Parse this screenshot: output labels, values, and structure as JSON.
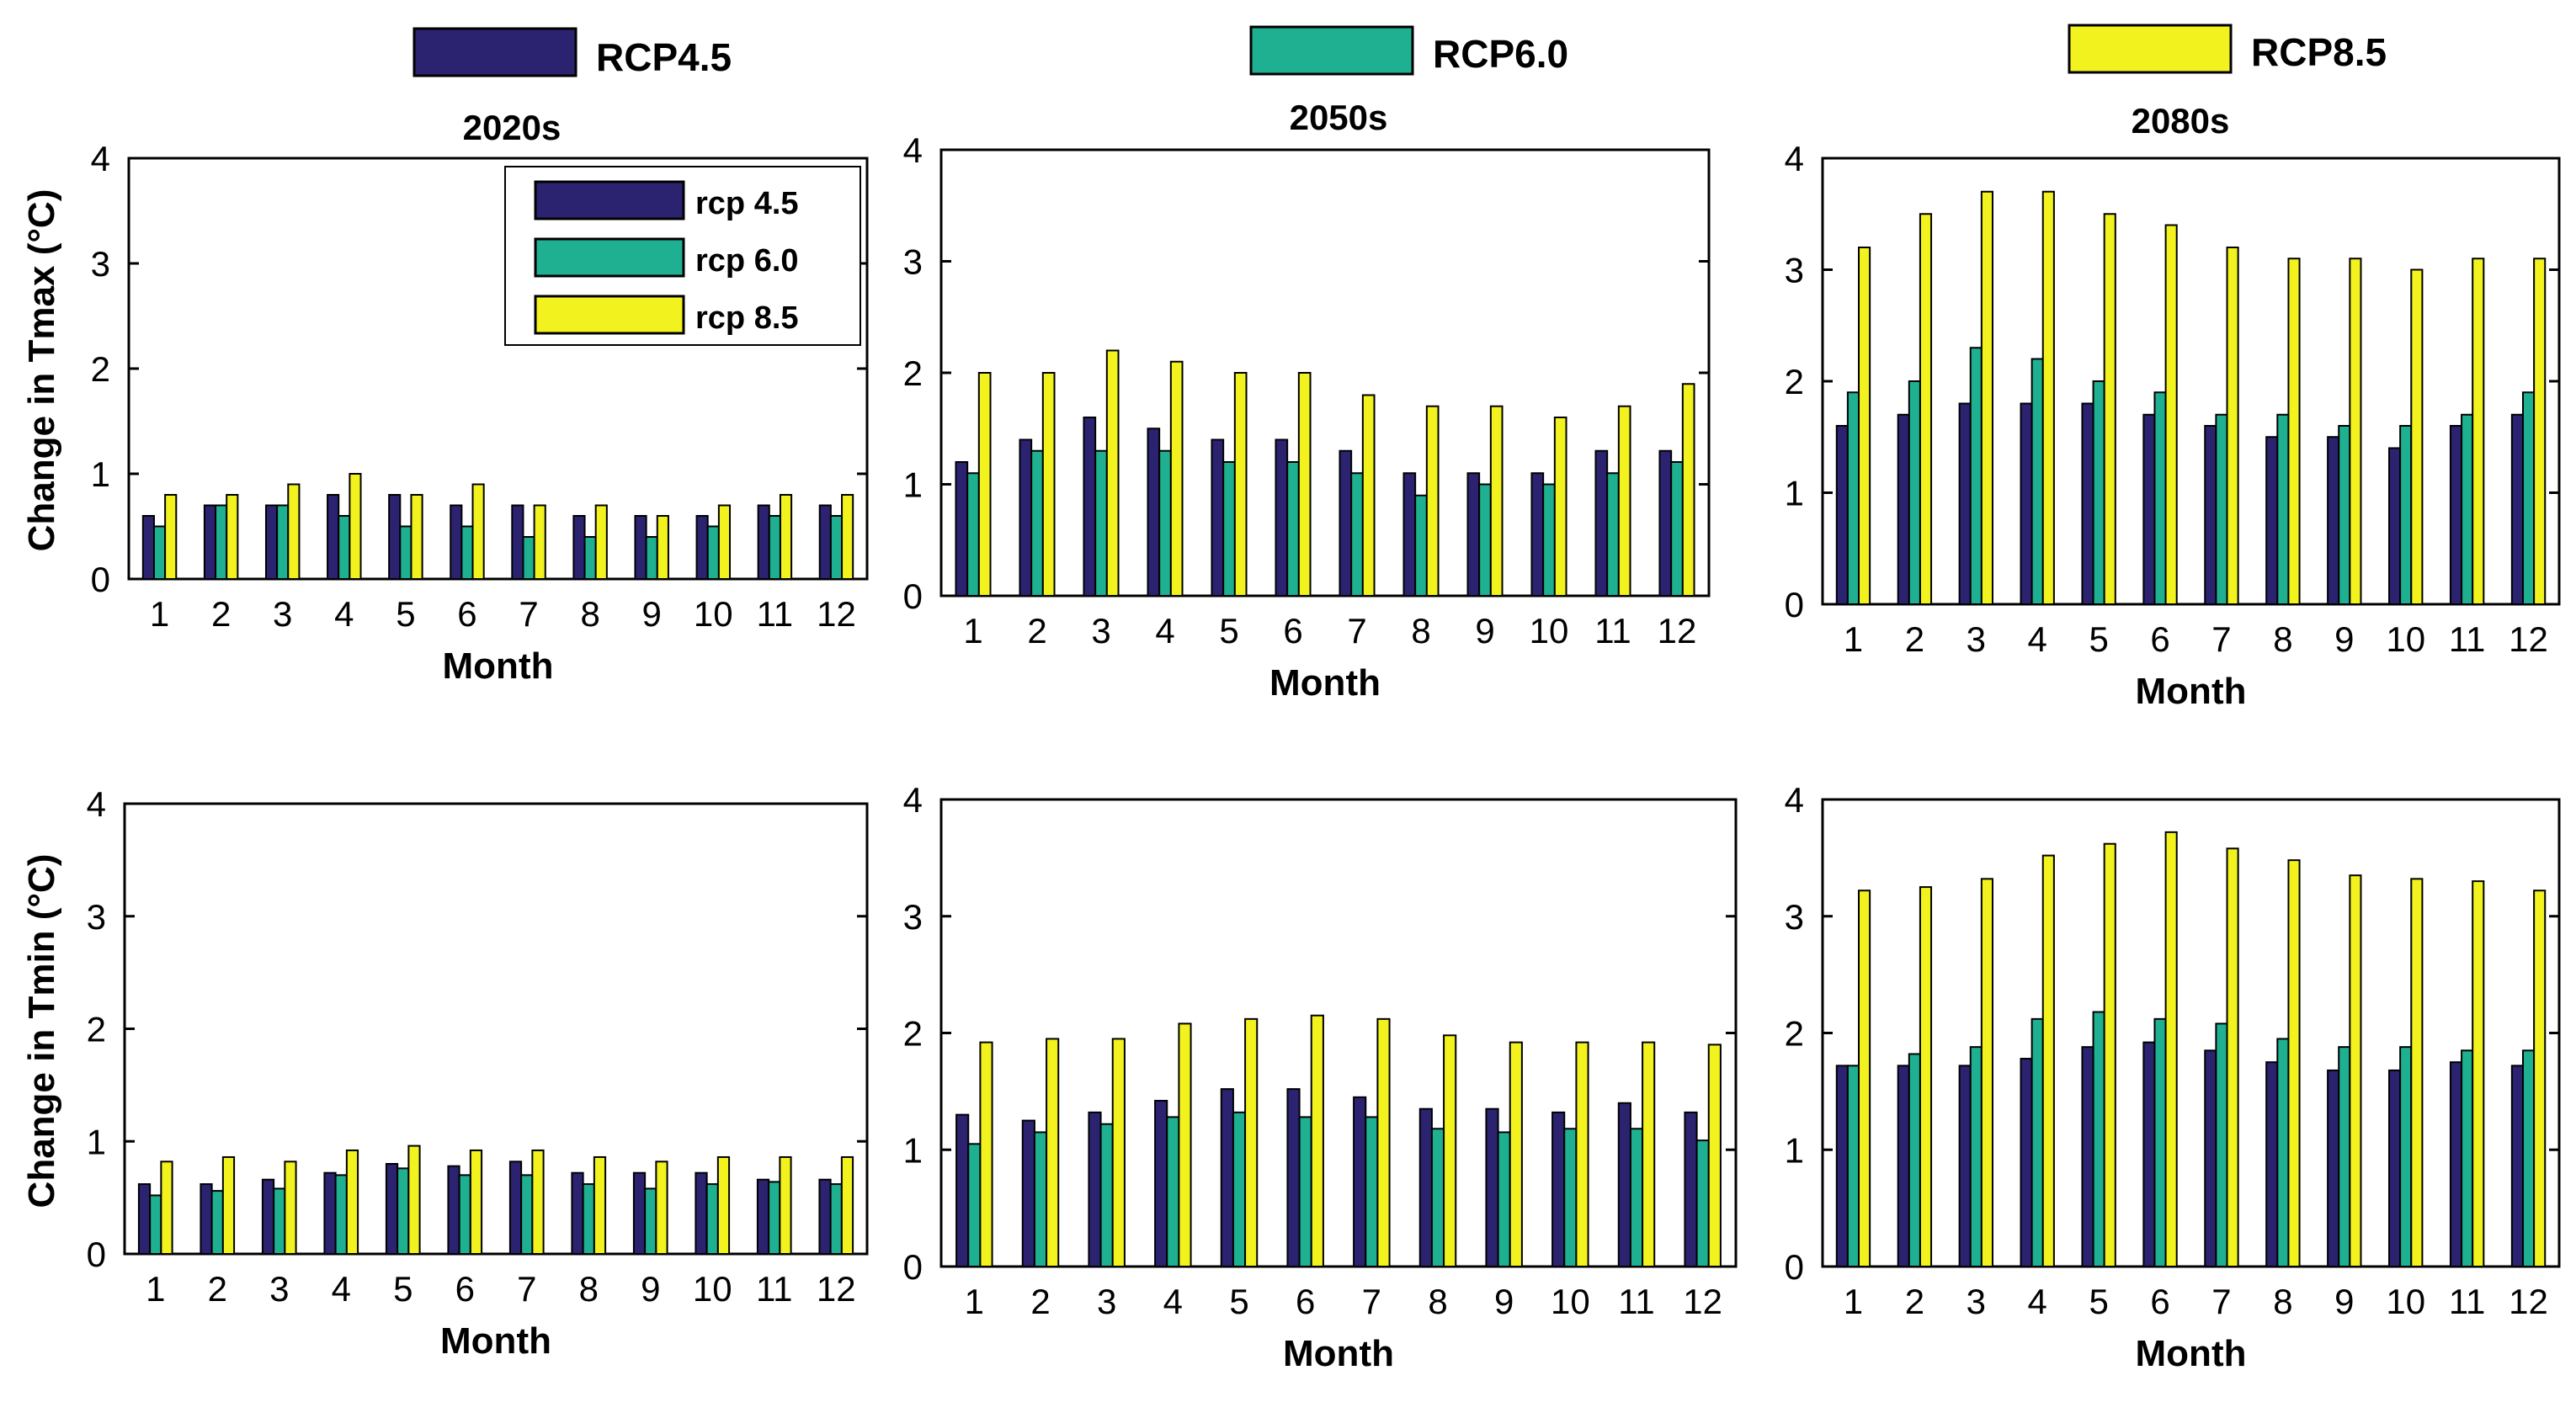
{
  "top_legend": [
    {
      "label": "RCP4.5",
      "color": "#2b2370"
    },
    {
      "label": "RCP6.0",
      "color": "#1fb091"
    },
    {
      "label": "RCP8.5",
      "color": "#f2f21f"
    }
  ],
  "inner_legend": [
    "rcp 4.5",
    "rcp 6.0",
    "rcp 8.5"
  ],
  "chart_data": [
    {
      "id": "tmax-2020s",
      "type": "bar",
      "title": "2020s",
      "ylabel": "Change in Tmax (°C)",
      "xlabel": "Month",
      "categories": [
        "1",
        "2",
        "3",
        "4",
        "5",
        "6",
        "7",
        "8",
        "9",
        "10",
        "11",
        "12"
      ],
      "ylim": [
        0,
        4
      ],
      "yticks": [
        "0",
        "1",
        "2",
        "3",
        "4"
      ],
      "series": [
        {
          "name": "rcp 4.5",
          "values": [
            0.6,
            0.7,
            0.7,
            0.8,
            0.8,
            0.7,
            0.7,
            0.6,
            0.6,
            0.6,
            0.7,
            0.7
          ]
        },
        {
          "name": "rcp 6.0",
          "values": [
            0.5,
            0.7,
            0.7,
            0.6,
            0.5,
            0.5,
            0.4,
            0.4,
            0.4,
            0.5,
            0.6,
            0.6
          ]
        },
        {
          "name": "rcp 8.5",
          "values": [
            0.8,
            0.8,
            0.9,
            1.0,
            0.8,
            0.9,
            0.7,
            0.7,
            0.6,
            0.7,
            0.8,
            0.8
          ]
        }
      ]
    },
    {
      "id": "tmax-2050s",
      "type": "bar",
      "title": "2050s",
      "ylabel": "",
      "xlabel": "Month",
      "categories": [
        "1",
        "2",
        "3",
        "4",
        "5",
        "6",
        "7",
        "8",
        "9",
        "10",
        "11",
        "12"
      ],
      "ylim": [
        0,
        4
      ],
      "yticks": [
        "0",
        "1",
        "2",
        "3",
        "4"
      ],
      "series": [
        {
          "name": "rcp 4.5",
          "values": [
            1.2,
            1.4,
            1.6,
            1.5,
            1.4,
            1.4,
            1.3,
            1.1,
            1.1,
            1.1,
            1.3,
            1.3
          ]
        },
        {
          "name": "rcp 6.0",
          "values": [
            1.1,
            1.3,
            1.3,
            1.3,
            1.2,
            1.2,
            1.1,
            0.9,
            1.0,
            1.0,
            1.1,
            1.2
          ]
        },
        {
          "name": "rcp 8.5",
          "values": [
            2.0,
            2.0,
            2.2,
            2.1,
            2.0,
            2.0,
            1.8,
            1.7,
            1.7,
            1.6,
            1.7,
            1.9
          ]
        }
      ]
    },
    {
      "id": "tmax-2080s",
      "type": "bar",
      "title": "2080s",
      "ylabel": "",
      "xlabel": "Month",
      "categories": [
        "1",
        "2",
        "3",
        "4",
        "5",
        "6",
        "7",
        "8",
        "9",
        "10",
        "11",
        "12"
      ],
      "ylim": [
        0,
        4
      ],
      "yticks": [
        "0",
        "1",
        "2",
        "3",
        "4"
      ],
      "series": [
        {
          "name": "rcp 4.5",
          "values": [
            1.6,
            1.7,
            1.8,
            1.8,
            1.8,
            1.7,
            1.6,
            1.5,
            1.5,
            1.4,
            1.6,
            1.7
          ]
        },
        {
          "name": "rcp 6.0",
          "values": [
            1.9,
            2.0,
            2.3,
            2.2,
            2.0,
            1.9,
            1.7,
            1.7,
            1.6,
            1.6,
            1.7,
            1.9
          ]
        },
        {
          "name": "rcp 8.5",
          "values": [
            3.2,
            3.5,
            3.7,
            3.7,
            3.5,
            3.4,
            3.2,
            3.1,
            3.1,
            3.0,
            3.1,
            3.1
          ]
        }
      ]
    },
    {
      "id": "tmin-2020s",
      "type": "bar",
      "title": "",
      "ylabel": "Change in Tmin (°C)",
      "xlabel": "Month",
      "categories": [
        "1",
        "2",
        "3",
        "4",
        "5",
        "6",
        "7",
        "8",
        "9",
        "10",
        "11",
        "12"
      ],
      "ylim": [
        0,
        4
      ],
      "yticks": [
        "0",
        "1",
        "2",
        "3",
        "4"
      ],
      "series": [
        {
          "name": "rcp 4.5",
          "values": [
            0.62,
            0.62,
            0.66,
            0.72,
            0.8,
            0.78,
            0.82,
            0.72,
            0.72,
            0.72,
            0.66,
            0.66
          ]
        },
        {
          "name": "rcp 6.0",
          "values": [
            0.52,
            0.56,
            0.58,
            0.7,
            0.76,
            0.7,
            0.7,
            0.62,
            0.58,
            0.62,
            0.64,
            0.62
          ]
        },
        {
          "name": "rcp 8.5",
          "values": [
            0.82,
            0.86,
            0.82,
            0.92,
            0.96,
            0.92,
            0.92,
            0.86,
            0.82,
            0.86,
            0.86,
            0.86
          ]
        }
      ]
    },
    {
      "id": "tmin-2050s",
      "type": "bar",
      "title": "",
      "ylabel": "",
      "xlabel": "Month",
      "categories": [
        "1",
        "2",
        "3",
        "4",
        "5",
        "6",
        "7",
        "8",
        "9",
        "10",
        "11",
        "12"
      ],
      "ylim": [
        0,
        4
      ],
      "yticks": [
        "0",
        "1",
        "2",
        "3",
        "4"
      ],
      "series": [
        {
          "name": "rcp 4.5",
          "values": [
            1.3,
            1.25,
            1.32,
            1.42,
            1.52,
            1.52,
            1.45,
            1.35,
            1.35,
            1.32,
            1.4,
            1.32
          ]
        },
        {
          "name": "rcp 6.0",
          "values": [
            1.05,
            1.15,
            1.22,
            1.28,
            1.32,
            1.28,
            1.28,
            1.18,
            1.15,
            1.18,
            1.18,
            1.08
          ]
        },
        {
          "name": "rcp 8.5",
          "values": [
            1.92,
            1.95,
            1.95,
            2.08,
            2.12,
            2.15,
            2.12,
            1.98,
            1.92,
            1.92,
            1.92,
            1.9
          ]
        }
      ]
    },
    {
      "id": "tmin-2080s",
      "type": "bar",
      "title": "",
      "ylabel": "",
      "xlabel": "Month",
      "categories": [
        "1",
        "2",
        "3",
        "4",
        "5",
        "6",
        "7",
        "8",
        "9",
        "10",
        "11",
        "12"
      ],
      "ylim": [
        0,
        4
      ],
      "yticks": [
        "0",
        "1",
        "2",
        "3",
        "4"
      ],
      "series": [
        {
          "name": "rcp 4.5",
          "values": [
            1.72,
            1.72,
            1.72,
            1.78,
            1.88,
            1.92,
            1.85,
            1.75,
            1.68,
            1.68,
            1.75,
            1.72
          ]
        },
        {
          "name": "rcp 6.0",
          "values": [
            1.72,
            1.82,
            1.88,
            2.12,
            2.18,
            2.12,
            2.08,
            1.95,
            1.88,
            1.88,
            1.85,
            1.85
          ]
        },
        {
          "name": "rcp 8.5",
          "values": [
            3.22,
            3.25,
            3.32,
            3.52,
            3.62,
            3.72,
            3.58,
            3.48,
            3.35,
            3.32,
            3.3,
            3.22
          ]
        }
      ]
    }
  ]
}
